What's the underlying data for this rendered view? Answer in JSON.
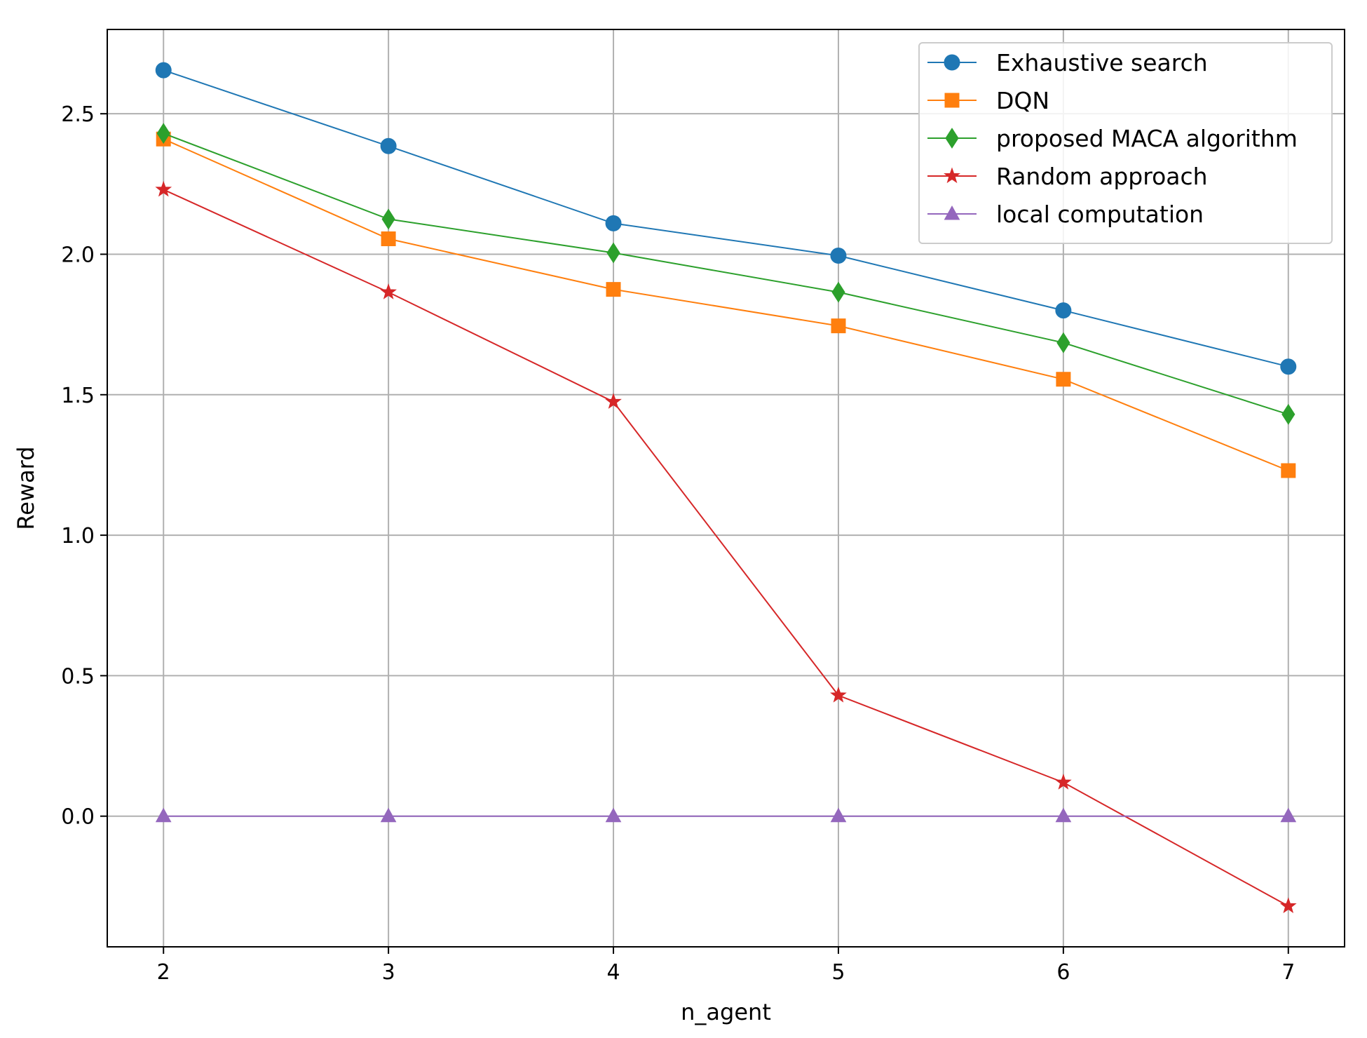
{
  "chart_data": {
    "type": "line",
    "title": "",
    "xlabel": "n_agent",
    "ylabel": "Reward",
    "x": [
      2,
      3,
      4,
      5,
      6,
      7
    ],
    "xlim": [
      1.75,
      7.25
    ],
    "ylim": [
      -0.465,
      2.8
    ],
    "xticks": [
      2,
      3,
      4,
      5,
      6,
      7
    ],
    "xtick_labels": [
      "2",
      "3",
      "4",
      "5",
      "6",
      "7"
    ],
    "yticks": [
      0.0,
      0.5,
      1.0,
      1.5,
      2.0,
      2.5
    ],
    "ytick_labels": [
      "0.0",
      "0.5",
      "1.0",
      "1.5",
      "2.0",
      "2.5"
    ],
    "grid": true,
    "legend_position": "top-right",
    "series": [
      {
        "name": "Exhaustive search",
        "color": "#1f77b4",
        "marker": "circle",
        "values": [
          2.655,
          2.385,
          2.11,
          1.995,
          1.8,
          1.6
        ]
      },
      {
        "name": "DQN",
        "color": "#ff7f0e",
        "marker": "square",
        "values": [
          2.41,
          2.055,
          1.875,
          1.745,
          1.555,
          1.23
        ]
      },
      {
        "name": "proposed MACA algorithm",
        "color": "#2ca02c",
        "marker": "diamond",
        "values": [
          2.43,
          2.125,
          2.005,
          1.865,
          1.685,
          1.43
        ]
      },
      {
        "name": "Random approach",
        "color": "#d62728",
        "marker": "star",
        "values": [
          2.23,
          1.865,
          1.475,
          0.43,
          0.12,
          -0.32
        ]
      },
      {
        "name": "local computation",
        "color": "#9467bd",
        "marker": "triangle",
        "values": [
          0.0,
          0.0,
          0.0,
          0.0,
          0.0,
          0.0
        ]
      }
    ]
  }
}
